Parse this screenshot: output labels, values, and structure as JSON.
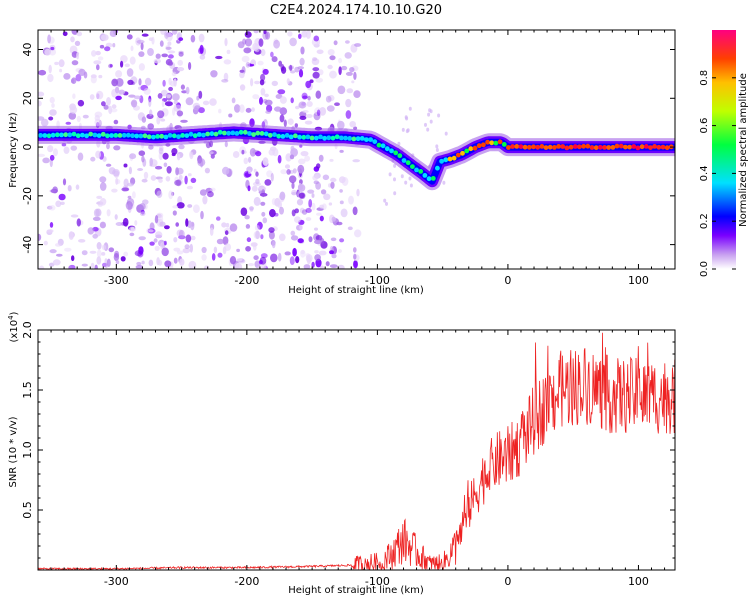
{
  "title": "C2E4.2024.174.10.10.G20",
  "chart_data": [
    {
      "type": "heatmap",
      "xlabel": "Height of straight line (km)",
      "ylabel": "Frequency (Hz)",
      "xlim": [
        -360,
        128
      ],
      "ylim": [
        -50,
        48
      ],
      "x_ticks": [
        -300,
        -200,
        -100,
        0,
        100
      ],
      "y_ticks": [
        40,
        20,
        0,
        -20,
        -40
      ],
      "trace": {
        "x": [
          -360,
          -330,
          -300,
          -270,
          -240,
          -210,
          -180,
          -150,
          -125,
          -105,
          -95,
          -85,
          -75,
          -65,
          -58,
          -52,
          -45,
          -35,
          -25,
          -15,
          -5,
          0,
          20,
          60,
          100,
          128
        ],
        "y": [
          5,
          5,
          5,
          4,
          5,
          6,
          5,
          4,
          4,
          3,
          0,
          -3,
          -7,
          -11,
          -14,
          -6,
          -5,
          -3,
          0,
          2,
          2,
          0,
          0,
          0,
          0,
          0
        ]
      },
      "colorbar": {
        "label": "Normalized spectral amplitude",
        "range": [
          0,
          1
        ],
        "ticks": [
          "0.0",
          "0.2",
          "0.4",
          "0.6",
          "0.8"
        ],
        "tick_values": [
          0.0,
          0.2,
          0.4,
          0.6,
          0.8
        ],
        "colors": [
          "#ffffff",
          "#c8a0f0",
          "#7a00ff",
          "#0000ff",
          "#00e0ff",
          "#00ff40",
          "#c0ff00",
          "#ffc000",
          "#ff4000",
          "#ff0080"
        ]
      }
    },
    {
      "type": "line",
      "xlabel": "Height of straight line (km)",
      "ylabel": "SNR (10 * v/v)",
      "multiplier": "(x10",
      "multiplier_exp": "4",
      "multiplier_close": ")",
      "xlim": [
        -360,
        128
      ],
      "ylim": [
        0,
        2.0
      ],
      "x_ticks": [
        -300,
        -200,
        -100,
        0,
        100
      ],
      "y_ticks": [
        "0.5",
        "1.0",
        "1.5",
        "2.0"
      ],
      "y_tick_values": [
        0.5,
        1.0,
        1.5,
        2.0
      ],
      "series": [
        {
          "color": "#ee2222",
          "x": [
            -360,
            -300,
            -250,
            -200,
            -150,
            -120,
            -100,
            -90,
            -80,
            -70,
            -60,
            -50,
            -40,
            -30,
            -20,
            -10,
            0,
            10,
            20,
            30,
            40,
            60,
            80,
            100,
            128
          ],
          "y": [
            0.01,
            0.01,
            0.02,
            0.02,
            0.03,
            0.04,
            0.06,
            0.12,
            0.25,
            0.15,
            0.05,
            0.05,
            0.2,
            0.5,
            0.75,
            0.9,
            0.95,
            1.05,
            1.25,
            1.38,
            1.5,
            1.55,
            1.45,
            1.45,
            1.45
          ]
        }
      ]
    }
  ]
}
